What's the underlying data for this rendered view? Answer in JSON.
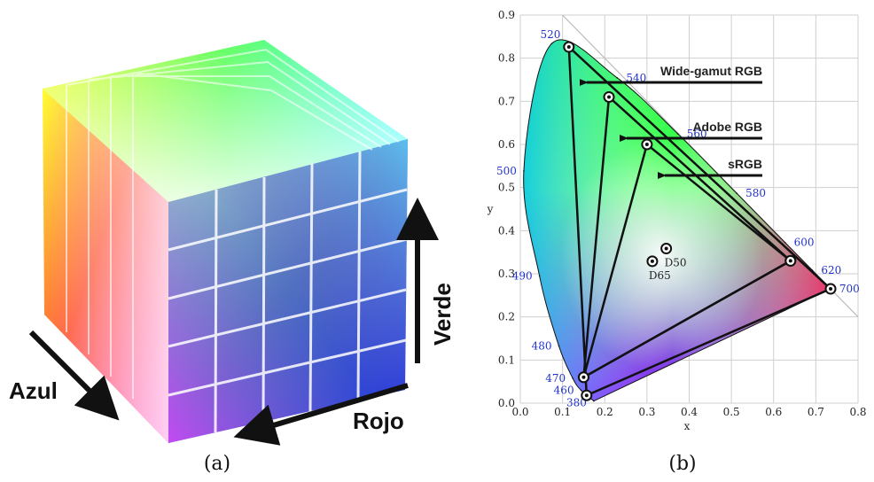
{
  "panel_a": {
    "caption": "(a)",
    "axis_labels": {
      "blue": "Azul",
      "green": "Verde",
      "red": "Rojo"
    }
  },
  "panel_b": {
    "caption": "(b)",
    "x_label": "x",
    "y_label": "y",
    "xlim": [
      0,
      0.8
    ],
    "ylim": [
      0,
      0.9
    ],
    "xticks": [
      {
        "value": 0,
        "label": "0.0"
      },
      0.1,
      0.2,
      0.3,
      0.4,
      0.5,
      0.6,
      0.7,
      0.8
    ],
    "yticks": [
      {
        "value": 0,
        "label": "0.0"
      },
      0.1,
      0.2,
      0.3,
      0.4,
      0.5,
      0.6,
      0.7,
      0.8,
      0.9
    ],
    "locus": [
      {
        "nm": 380,
        "x": 0.1741,
        "y": 0.005
      },
      {
        "nm": 460,
        "x": 0.144,
        "y": 0.0297
      },
      {
        "nm": 470,
        "x": 0.1241,
        "y": 0.0578
      },
      {
        "nm": 480,
        "x": 0.0913,
        "y": 0.1327
      },
      {
        "nm": 490,
        "x": 0.0454,
        "y": 0.295
      },
      {
        "nm": 500,
        "x": 0.0082,
        "y": 0.5384
      },
      {
        "nm": 520,
        "x": 0.0743,
        "y": 0.8338
      },
      {
        "nm": 540,
        "x": 0.2296,
        "y": 0.7543
      },
      {
        "nm": 560,
        "x": 0.3731,
        "y": 0.6245
      },
      {
        "nm": 580,
        "x": 0.5125,
        "y": 0.4866
      },
      {
        "nm": 600,
        "x": 0.627,
        "y": 0.3725
      },
      {
        "nm": 620,
        "x": 0.6915,
        "y": 0.3083
      },
      {
        "nm": 700,
        "x": 0.7347,
        "y": 0.2653
      }
    ],
    "gamuts": [
      {
        "name": "Wide-gamut RGB",
        "points": [
          [
            0.735,
            0.265
          ],
          [
            0.115,
            0.826
          ],
          [
            0.157,
            0.018
          ]
        ]
      },
      {
        "name": "Adobe RGB",
        "points": [
          [
            0.64,
            0.33
          ],
          [
            0.21,
            0.71
          ],
          [
            0.15,
            0.06
          ]
        ]
      },
      {
        "name": "sRGB",
        "points": [
          [
            0.64,
            0.33
          ],
          [
            0.3,
            0.6
          ],
          [
            0.15,
            0.06
          ]
        ]
      }
    ],
    "white_points": [
      {
        "name": "D50",
        "x": 0.3457,
        "y": 0.3585
      },
      {
        "name": "D65",
        "x": 0.3127,
        "y": 0.329
      }
    ]
  }
}
